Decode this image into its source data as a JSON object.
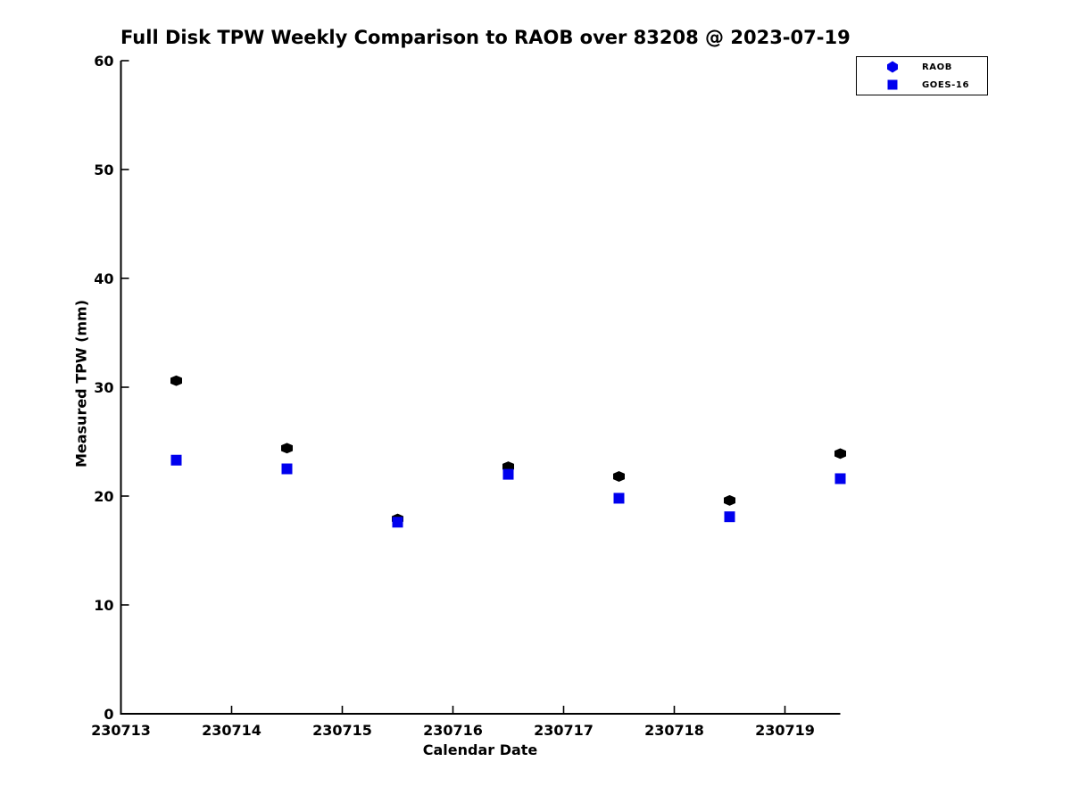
{
  "chart_data": {
    "type": "scatter",
    "title": "Full Disk TPW Weekly Comparison to RAOB over 83208 @ 2023-07-19",
    "xlabel": "Calendar Date",
    "ylabel": "Measured TPW (mm)",
    "xlim": [
      230713,
      230719.5
    ],
    "ylim": [
      0,
      60
    ],
    "x_ticks": [
      "230713",
      "230714",
      "230715",
      "230716",
      "230717",
      "230718",
      "230719"
    ],
    "y_ticks": [
      "0",
      "10",
      "20",
      "30",
      "40",
      "50",
      "60"
    ],
    "grid": false,
    "legend_position": "top-right",
    "x": [
      230713.5,
      230714.5,
      230715.5,
      230716.5,
      230717.5,
      230718.5,
      230719.5
    ],
    "series": [
      {
        "name": "RAOB",
        "marker": "hexagon",
        "plot_color": "#000000",
        "legend_color": "#0000ee",
        "values": [
          30.6,
          24.4,
          17.9,
          22.7,
          21.8,
          19.6,
          23.9
        ]
      },
      {
        "name": "GOES-16",
        "marker": "square",
        "plot_color": "#0000ee",
        "legend_color": "#0000ee",
        "values": [
          23.3,
          22.5,
          17.6,
          22.0,
          19.8,
          18.1,
          21.6
        ]
      }
    ],
    "colors": {
      "axis": "#000000",
      "text": "#000000",
      "blue_accent": "#0000ee"
    }
  }
}
